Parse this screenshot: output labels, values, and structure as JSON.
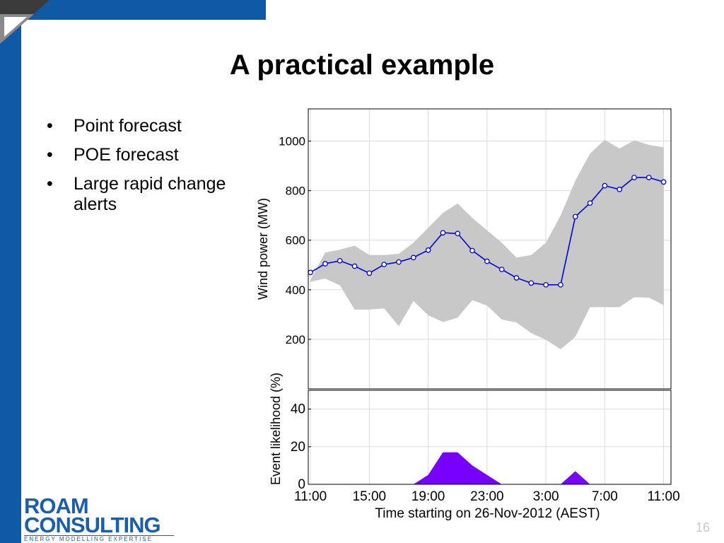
{
  "slide": {
    "title": "A practical example",
    "bullets": [
      "Point forecast",
      "POE forecast",
      "Large rapid change alerts"
    ],
    "bullet_glyph": "•",
    "page_number": "16"
  },
  "logo": {
    "line1": "ROAM",
    "line2": "CONSULTING",
    "tagline": "ENERGY MODELLING EXPERTISE"
  },
  "colors": {
    "band": "#0e5aa7",
    "forecast": "#0000ee",
    "poe_band": "#c8c8c8",
    "event": "#7700ff"
  },
  "chart_data": {
    "type": "line",
    "xlabel": "Time starting on 26-Nov-2012 (AEST)",
    "x_tick_labels": [
      "11:00",
      "15:00",
      "19:00",
      "23:00",
      "3:00",
      "7:00",
      "11:00"
    ],
    "x_tick_hours": [
      0,
      4,
      8,
      12,
      16,
      20,
      24
    ],
    "xlim": [
      -0.15,
      24.5
    ],
    "grid": true,
    "panels": [
      {
        "ylabel": "Wind power (MW)",
        "y_ticks": [
          200,
          400,
          600,
          800,
          1000
        ],
        "ylim": [
          0,
          1130
        ],
        "series": [
          {
            "role": "point forecast",
            "style": "line-circle-markers",
            "x": [
              0,
              1,
              2,
              3,
              4,
              5,
              6,
              7,
              8,
              9,
              10,
              11,
              12,
              13,
              14,
              15,
              16,
              17,
              18,
              19,
              20,
              21,
              22,
              23,
              24
            ],
            "y": [
              470,
              505,
              517,
              495,
              467,
              502,
              512,
              530,
              560,
              630,
              627,
              558,
              515,
              482,
              448,
              427,
              420,
              420,
              695,
              750,
              820,
              805,
              853,
              853,
              835
            ]
          },
          {
            "role": "POE band",
            "style": "filled-band",
            "x": [
              0,
              1,
              2,
              3,
              4,
              5,
              6,
              7,
              8,
              9,
              10,
              11,
              12,
              13,
              14,
              15,
              16,
              17,
              18,
              19,
              20,
              21,
              22,
              23,
              24
            ],
            "upper": [
              440,
              550,
              562,
              578,
              540,
              540,
              545,
              590,
              650,
              710,
              748,
              690,
              640,
              590,
              530,
              540,
              590,
              700,
              840,
              950,
              1005,
              970,
              1003,
              985,
              975
            ],
            "lower": [
              432,
              445,
              418,
              320,
              320,
              325,
              253,
              355,
              297,
              270,
              287,
              358,
              336,
              280,
              268,
              225,
              198,
              160,
              210,
              330,
              330,
              330,
              370,
              368,
              338
            ]
          }
        ]
      },
      {
        "ylabel": "Event likelihood (%)",
        "y_ticks": [
          0,
          20,
          40
        ],
        "ylim": [
          0,
          50
        ],
        "series": [
          {
            "role": "event likelihood",
            "style": "filled-area",
            "x": [
              7,
              8,
              9,
              10,
              11,
              12,
              13,
              17,
              18,
              19
            ],
            "y": [
              0,
              5,
              17,
              17,
              10,
              5,
              0,
              0,
              7,
              0
            ]
          }
        ]
      }
    ]
  }
}
